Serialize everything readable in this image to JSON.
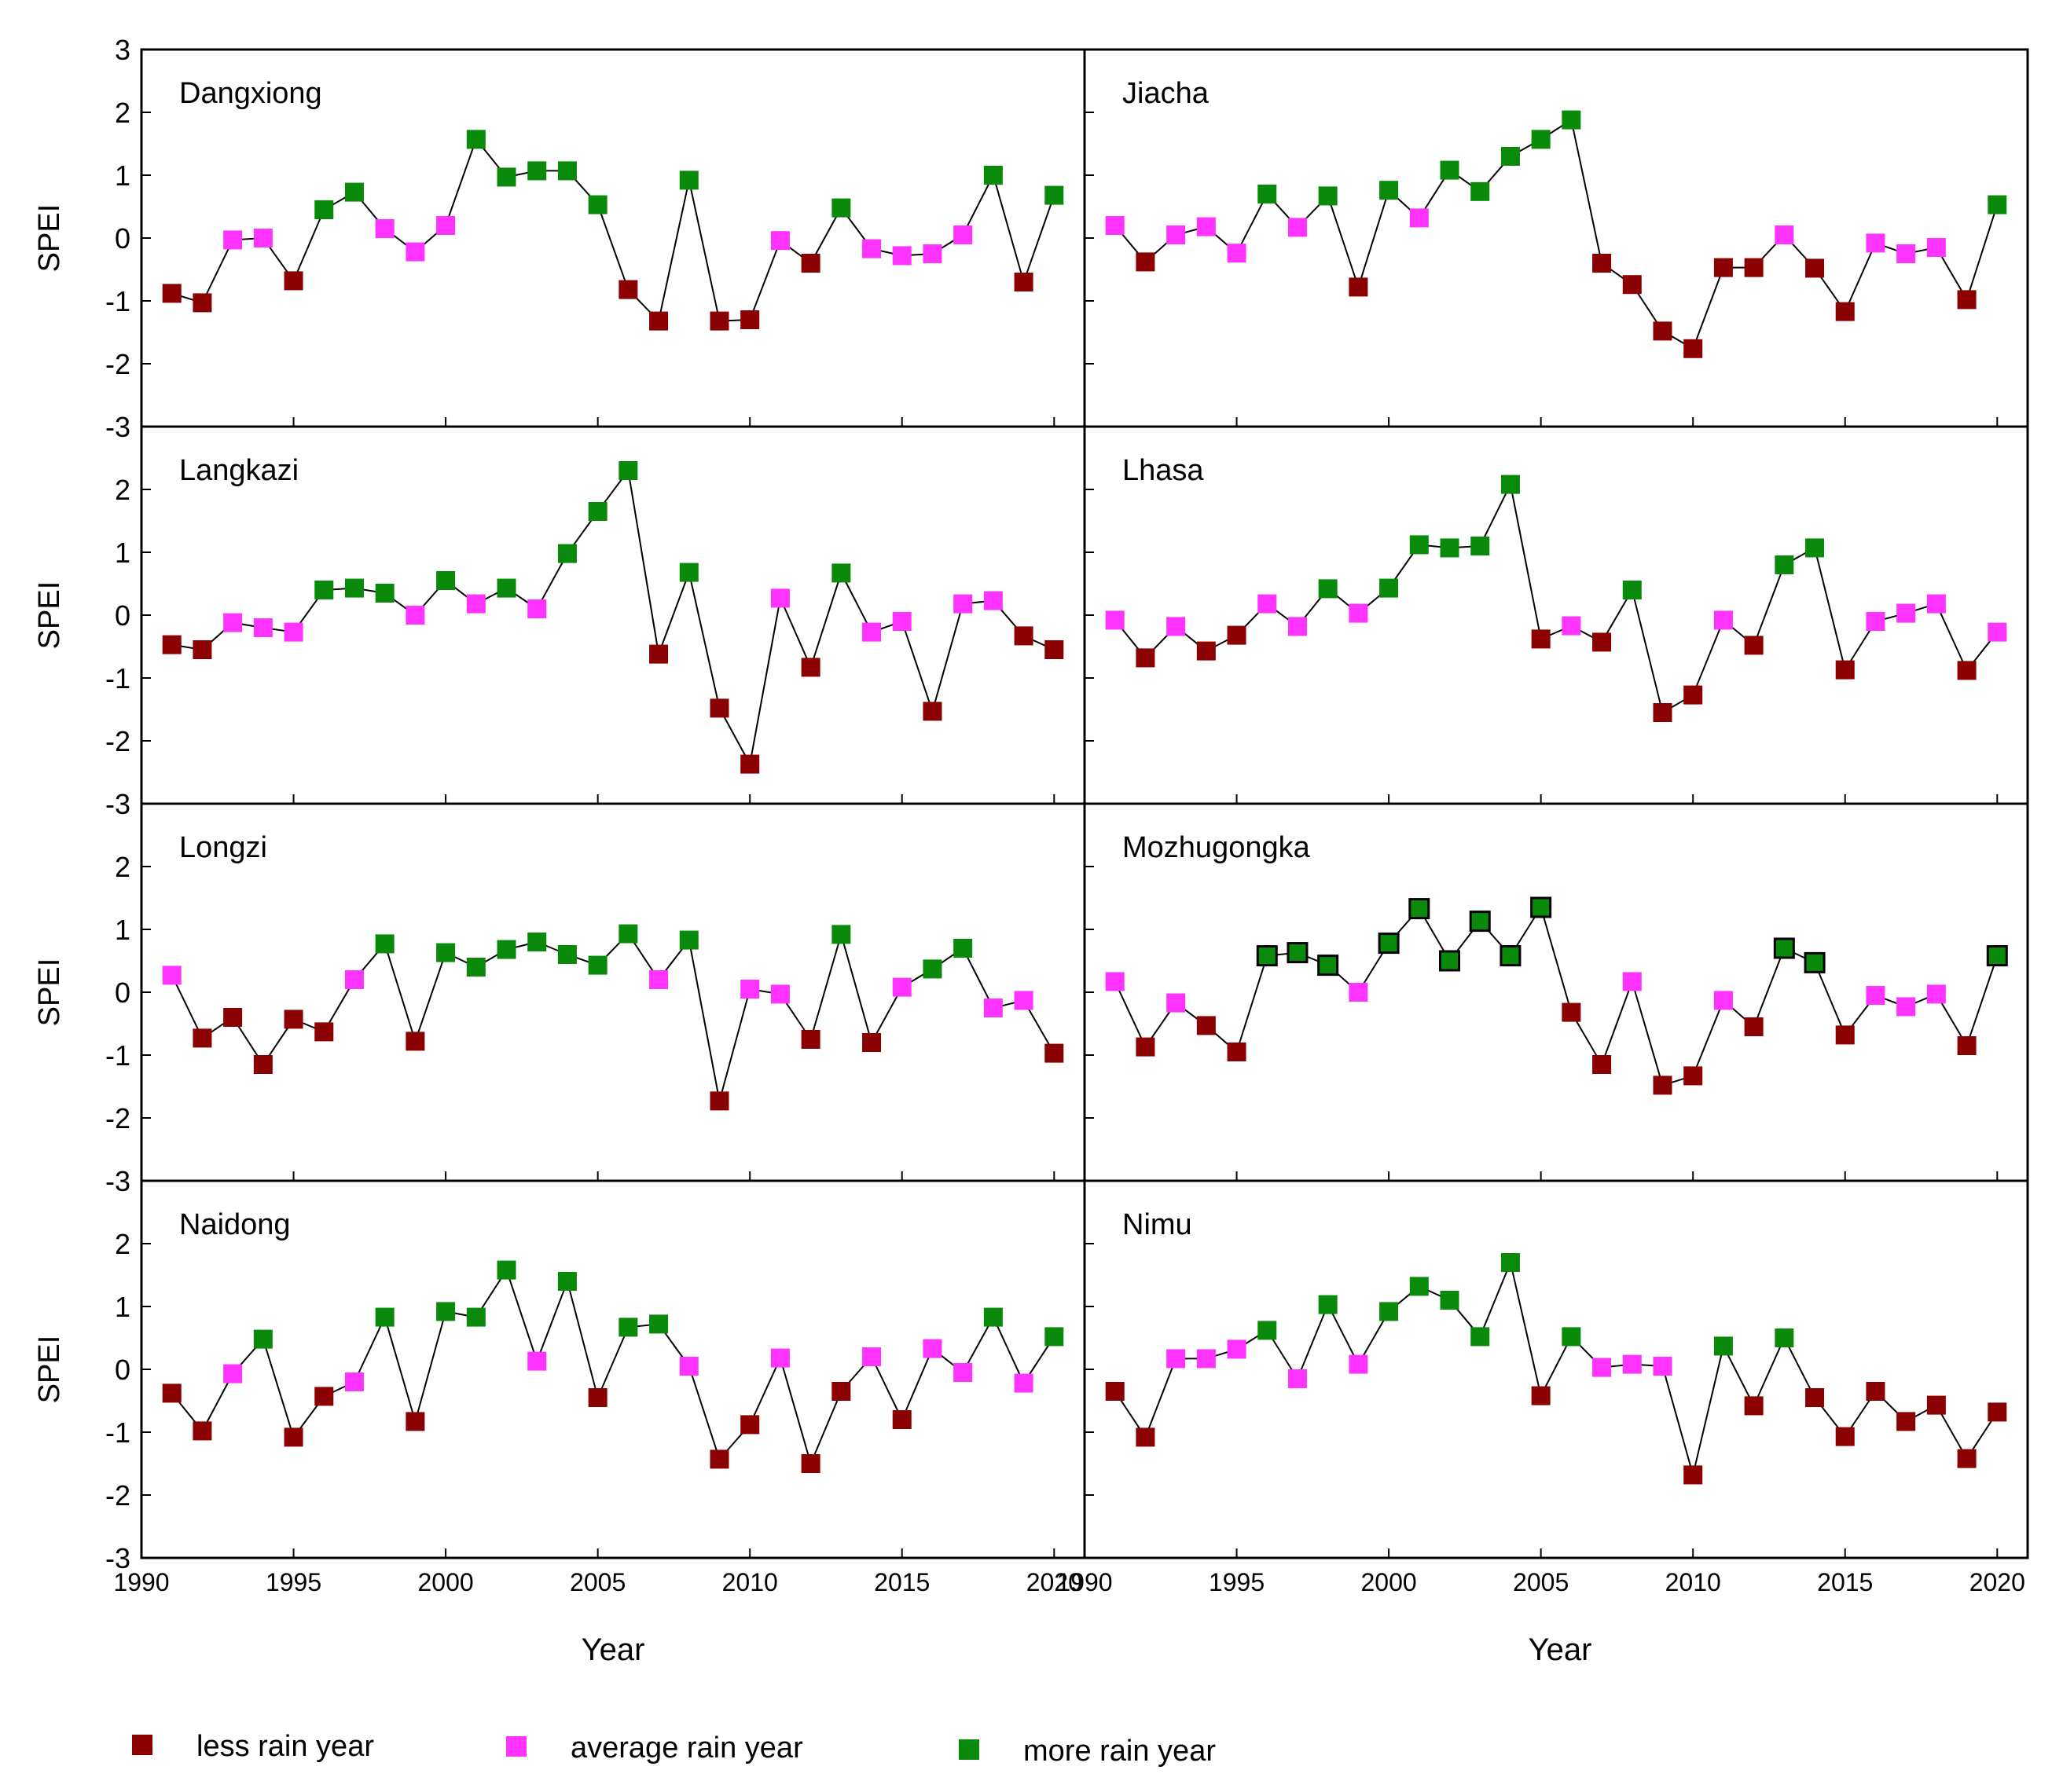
{
  "chart_data": {
    "type": "scatter",
    "title": "",
    "xlabel": "Year",
    "ylabel": "SPEI",
    "xlim": [
      1990,
      2021
    ],
    "ylim": [
      -3,
      3
    ],
    "x_ticks": [
      1990,
      1995,
      2000,
      2005,
      2010,
      2015,
      2020
    ],
    "y_ticks": [
      -3,
      -2,
      -1,
      0,
      1,
      2,
      3
    ],
    "layout": "4 rows x 2 columns, shared axes",
    "years": [
      1991,
      1992,
      1993,
      1994,
      1995,
      1996,
      1997,
      1998,
      1999,
      2000,
      2001,
      2002,
      2003,
      2004,
      2005,
      2006,
      2007,
      2008,
      2009,
      2010,
      2011,
      2012,
      2013,
      2014,
      2015,
      2016,
      2017,
      2018,
      2019,
      2020
    ],
    "categories": {
      "less": {
        "label": "less rain year",
        "color": "#8b0000"
      },
      "average": {
        "label": "average rain year",
        "color": "#ff33ff"
      },
      "more": {
        "label": "more rain year",
        "color": "#0a8a0a"
      }
    },
    "legend_position": "bottom",
    "panels": [
      {
        "station": "Dangxiong",
        "values": [
          -0.88,
          -1.03,
          -0.03,
          0.0,
          -0.68,
          0.45,
          0.73,
          0.15,
          -0.22,
          0.2,
          1.57,
          0.97,
          1.07,
          1.07,
          0.53,
          -0.82,
          -1.32,
          0.92,
          -1.32,
          -1.3,
          -0.04,
          -0.4,
          0.48,
          -0.17,
          -0.28,
          -0.25,
          0.05,
          1.0,
          -0.7,
          0.68
        ]
      },
      {
        "station": "Jiacha",
        "values": [
          0.2,
          -0.38,
          0.05,
          0.18,
          -0.24,
          0.7,
          0.17,
          0.67,
          -0.78,
          0.76,
          0.32,
          1.08,
          0.74,
          1.3,
          1.57,
          1.88,
          -0.4,
          -0.74,
          -1.48,
          -1.76,
          -0.47,
          -0.47,
          0.05,
          -0.48,
          -1.17,
          -0.08,
          -0.25,
          -0.15,
          -0.98,
          0.53
        ]
      },
      {
        "station": "Langkazi",
        "values": [
          -0.47,
          -0.55,
          -0.12,
          -0.2,
          -0.27,
          0.4,
          0.43,
          0.35,
          0.0,
          0.55,
          0.18,
          0.43,
          0.1,
          0.98,
          1.65,
          2.3,
          -0.62,
          0.68,
          -1.48,
          -2.37,
          0.27,
          -0.83,
          0.67,
          -0.27,
          -0.1,
          -1.53,
          0.18,
          0.23,
          -0.33,
          -0.55
        ]
      },
      {
        "station": "Lhasa",
        "values": [
          -0.08,
          -0.68,
          -0.18,
          -0.57,
          -0.32,
          0.18,
          -0.18,
          0.42,
          0.03,
          0.43,
          1.12,
          1.07,
          1.1,
          2.08,
          -0.38,
          -0.17,
          -0.43,
          0.4,
          -1.55,
          -1.27,
          -0.08,
          -0.48,
          0.8,
          1.07,
          -0.87,
          -0.1,
          0.03,
          0.18,
          -0.88,
          -0.27
        ]
      },
      {
        "station": "Longzi",
        "values": [
          0.27,
          -0.73,
          -0.4,
          -1.15,
          -0.43,
          -0.63,
          0.2,
          0.77,
          -0.78,
          0.63,
          0.4,
          0.68,
          0.8,
          0.6,
          0.43,
          0.93,
          0.2,
          0.83,
          -1.73,
          0.05,
          -0.03,
          -0.75,
          0.92,
          -0.8,
          0.08,
          0.37,
          0.7,
          -0.25,
          -0.13,
          -0.97
        ]
      },
      {
        "station": "Mozhugongka",
        "values": [
          0.17,
          -0.87,
          -0.17,
          -0.53,
          -0.95,
          0.58,
          0.63,
          0.43,
          0.0,
          0.78,
          1.33,
          0.5,
          1.13,
          0.58,
          1.35,
          -0.32,
          -1.15,
          0.17,
          -1.48,
          -1.33,
          -0.13,
          -0.55,
          0.7,
          0.47,
          -0.68,
          -0.05,
          -0.23,
          -0.03,
          -0.85,
          0.58
        ]
      },
      {
        "station": "Naidong",
        "values": [
          -0.38,
          -0.98,
          -0.07,
          0.48,
          -1.08,
          -0.43,
          -0.2,
          0.83,
          -0.83,
          0.92,
          0.83,
          1.58,
          0.13,
          1.4,
          -0.45,
          0.67,
          0.72,
          0.05,
          -1.43,
          -0.88,
          0.18,
          -1.5,
          -0.35,
          0.2,
          -0.8,
          0.33,
          -0.05,
          0.83,
          -0.22,
          0.52
        ]
      },
      {
        "station": "Nimu",
        "values": [
          -0.35,
          -1.08,
          0.17,
          0.17,
          0.32,
          0.62,
          -0.15,
          1.03,
          0.08,
          0.92,
          1.32,
          1.1,
          0.52,
          1.7,
          -0.42,
          0.52,
          0.03,
          0.08,
          0.05,
          -1.68,
          0.37,
          -0.58,
          0.5,
          -0.45,
          -1.07,
          -0.35,
          -0.83,
          -0.57,
          -1.42,
          -0.68
        ]
      }
    ]
  }
}
